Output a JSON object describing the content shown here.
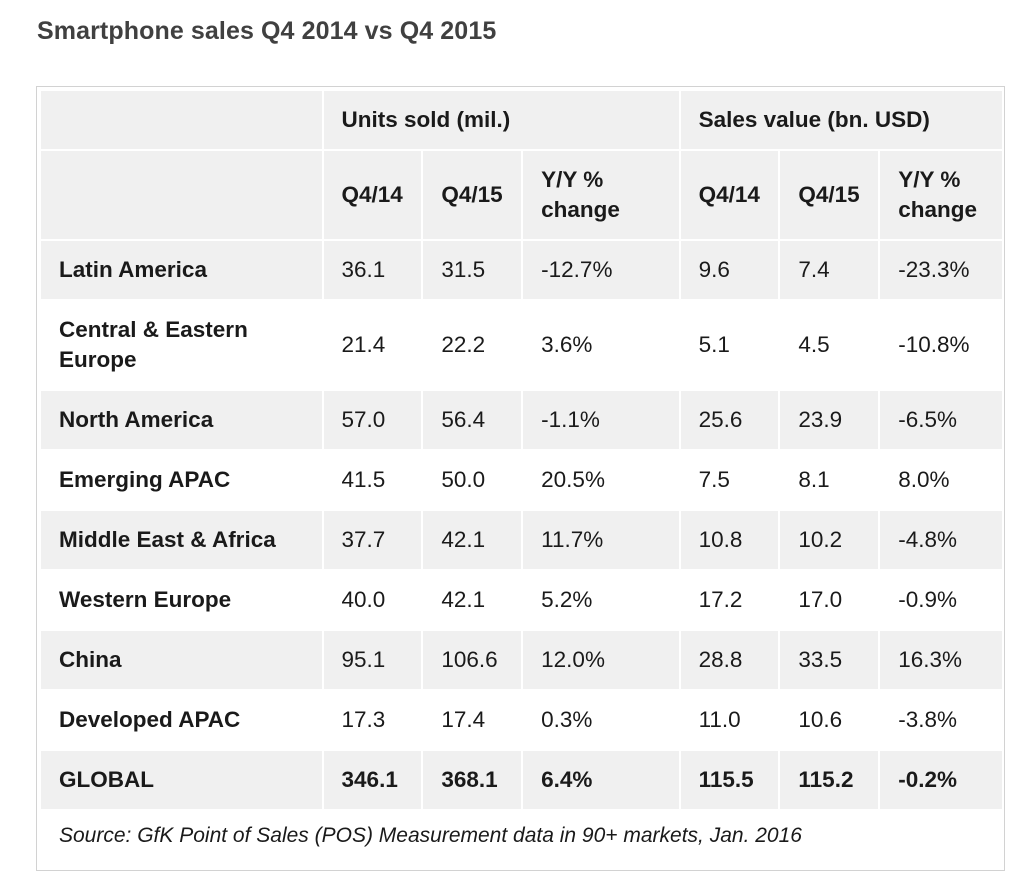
{
  "title": "Smartphone sales Q4 2014 vs Q4 2015",
  "chart_data": {
    "type": "table",
    "title": "Smartphone sales Q4 2014 vs Q4 2015",
    "column_groups": [
      "Units sold (mil.)",
      "Sales value (bn. USD)"
    ],
    "columns": [
      "Q4/14",
      "Q4/15",
      "Y/Y % change",
      "Q4/14",
      "Q4/15",
      "Y/Y % change"
    ],
    "rows": [
      {
        "region": "Latin America",
        "units_q414": "36.1",
        "units_q415": "31.5",
        "units_yy": "-12.7%",
        "value_q414": "9.6",
        "value_q415": "7.4",
        "value_yy": "-23.3%"
      },
      {
        "region": "Central & Eastern Europe",
        "units_q414": "21.4",
        "units_q415": "22.2",
        "units_yy": "3.6%",
        "value_q414": "5.1",
        "value_q415": "4.5",
        "value_yy": "-10.8%"
      },
      {
        "region": "North America",
        "units_q414": "57.0",
        "units_q415": "56.4",
        "units_yy": "-1.1%",
        "value_q414": "25.6",
        "value_q415": "23.9",
        "value_yy": "-6.5%"
      },
      {
        "region": "Emerging APAC",
        "units_q414": "41.5",
        "units_q415": "50.0",
        "units_yy": "20.5%",
        "value_q414": "7.5",
        "value_q415": "8.1",
        "value_yy": "8.0%"
      },
      {
        "region": "Middle East & Africa",
        "units_q414": "37.7",
        "units_q415": "42.1",
        "units_yy": "11.7%",
        "value_q414": "10.8",
        "value_q415": "10.2",
        "value_yy": "-4.8%"
      },
      {
        "region": "Western Europe",
        "units_q414": "40.0",
        "units_q415": "42.1",
        "units_yy": "5.2%",
        "value_q414": "17.2",
        "value_q415": "17.0",
        "value_yy": "-0.9%"
      },
      {
        "region": "China",
        "units_q414": "95.1",
        "units_q415": "106.6",
        "units_yy": "12.0%",
        "value_q414": "28.8",
        "value_q415": "33.5",
        "value_yy": "16.3%"
      },
      {
        "region": "Developed APAC",
        "units_q414": "17.3",
        "units_q415": "17.4",
        "units_yy": "0.3%",
        "value_q414": "11.0",
        "value_q415": "10.6",
        "value_yy": "-3.8%"
      },
      {
        "region": "GLOBAL",
        "units_q414": "346.1",
        "units_q415": "368.1",
        "units_yy": "6.4%",
        "value_q414": "115.5",
        "value_q415": "115.2",
        "value_yy": "-0.2%"
      }
    ],
    "source": "Source: GfK Point of Sales (POS) Measurement data in 90+ markets, Jan. 2016"
  }
}
